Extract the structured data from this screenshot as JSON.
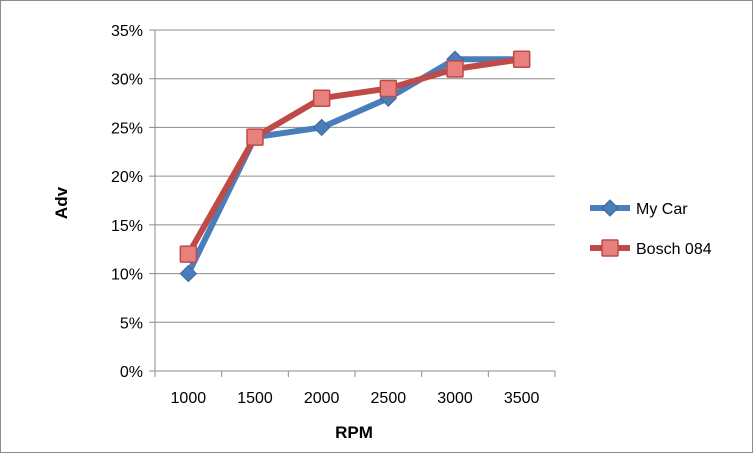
{
  "chart_data": {
    "type": "line",
    "title": "",
    "xlabel": "RPM",
    "ylabel": "Adv",
    "categories": [
      "1000",
      "1500",
      "2000",
      "2500",
      "3000",
      "3500"
    ],
    "y_ticks": [
      "0%",
      "5%",
      "10%",
      "15%",
      "20%",
      "25%",
      "30%",
      "35%"
    ],
    "ylim": [
      0,
      35
    ],
    "y_unit": "%",
    "grid": "horizontal",
    "legend_position": "right",
    "series": [
      {
        "name": "My Car",
        "values": [
          10,
          24,
          25,
          28,
          32,
          32
        ],
        "color": "#4a7ebb",
        "marker": "diamond"
      },
      {
        "name": "Bosch 084",
        "values": [
          12,
          24,
          28,
          29,
          31,
          32
        ],
        "color": "#be4b48",
        "marker": "square"
      }
    ]
  }
}
